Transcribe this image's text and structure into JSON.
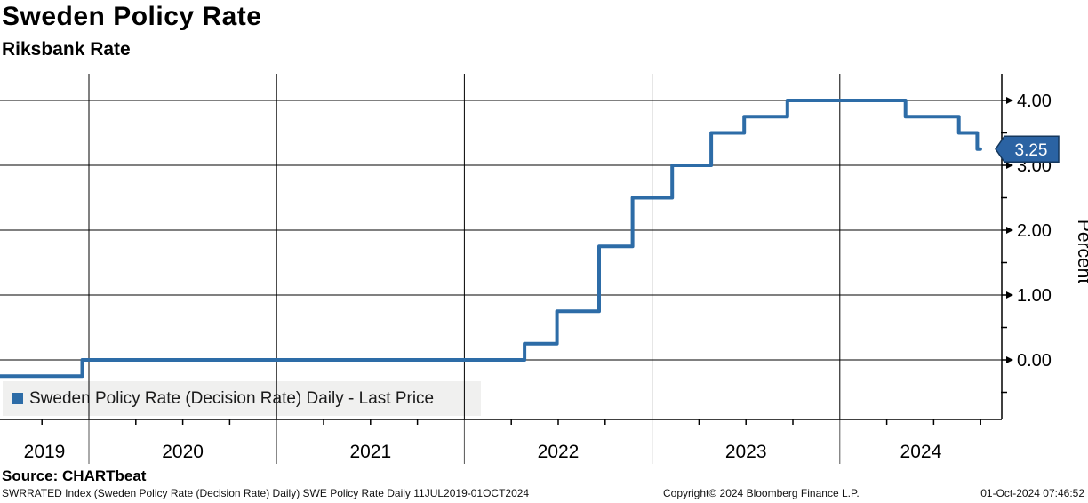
{
  "header": {
    "title": "Sweden Policy Rate",
    "subtitle": "Riksbank Rate"
  },
  "legend": {
    "label": "Sweden Policy Rate (Decision Rate) Daily - Last Price",
    "marker_color": "#2d6ca7"
  },
  "last_price": {
    "value": "3.25",
    "bg_color": "#2b63a3",
    "border_color": "#15375c",
    "text_color": "#ffffff"
  },
  "source_line": "Source: CHARTbeat",
  "footer": {
    "left": "SWRRATED Index (Sweden Policy Rate (Decision Rate) Daily) SWE Policy Rate  Daily 11JUL2019-01OCT2024",
    "center": "Copyright© 2024 Bloomberg Finance L.P.",
    "right": "01-Oct-2024 07:46:52"
  },
  "chart_data": {
    "type": "line",
    "style": "step-after",
    "title": "Sweden Policy Rate",
    "subtitle": "Riksbank Rate",
    "xlabel": "",
    "ylabel": "Percent",
    "x_range": [
      "2019-07-11",
      "2024-10-01"
    ],
    "ylim": [
      -0.9,
      4.4
    ],
    "grid": "horizontal-and-vertical",
    "legend_position": "bottom-left",
    "line_color": "#2d6ca7",
    "x_ticks": [
      "2019",
      "2020",
      "2021",
      "2022",
      "2023",
      "2024"
    ],
    "y_ticks": [
      {
        "label": "0.00",
        "value": 0
      },
      {
        "label": "1.00",
        "value": 1
      },
      {
        "label": "2.00",
        "value": 2
      },
      {
        "label": "3.00",
        "value": 3
      },
      {
        "label": "4.00",
        "value": 4
      }
    ],
    "y_minor_ticks": [
      -0.5,
      0.5,
      1.5,
      2.5,
      3.5
    ],
    "series": [
      {
        "name": "Sweden Policy Rate (Decision Rate) Daily - Last Price",
        "points": [
          {
            "date": "2019-07-11",
            "rate": -0.25
          },
          {
            "date": "2019-12-19",
            "rate": 0.0
          },
          {
            "date": "2022-04-28",
            "rate": 0.25
          },
          {
            "date": "2022-06-30",
            "rate": 0.75
          },
          {
            "date": "2022-09-20",
            "rate": 1.75
          },
          {
            "date": "2022-11-24",
            "rate": 2.5
          },
          {
            "date": "2023-02-09",
            "rate": 3.0
          },
          {
            "date": "2023-04-26",
            "rate": 3.5
          },
          {
            "date": "2023-06-29",
            "rate": 3.75
          },
          {
            "date": "2023-09-21",
            "rate": 4.0
          },
          {
            "date": "2024-05-08",
            "rate": 3.75
          },
          {
            "date": "2024-08-20",
            "rate": 3.5
          },
          {
            "date": "2024-09-25",
            "rate": 3.25
          }
        ],
        "end_date": "2024-10-01",
        "last_value": 3.25
      }
    ]
  }
}
